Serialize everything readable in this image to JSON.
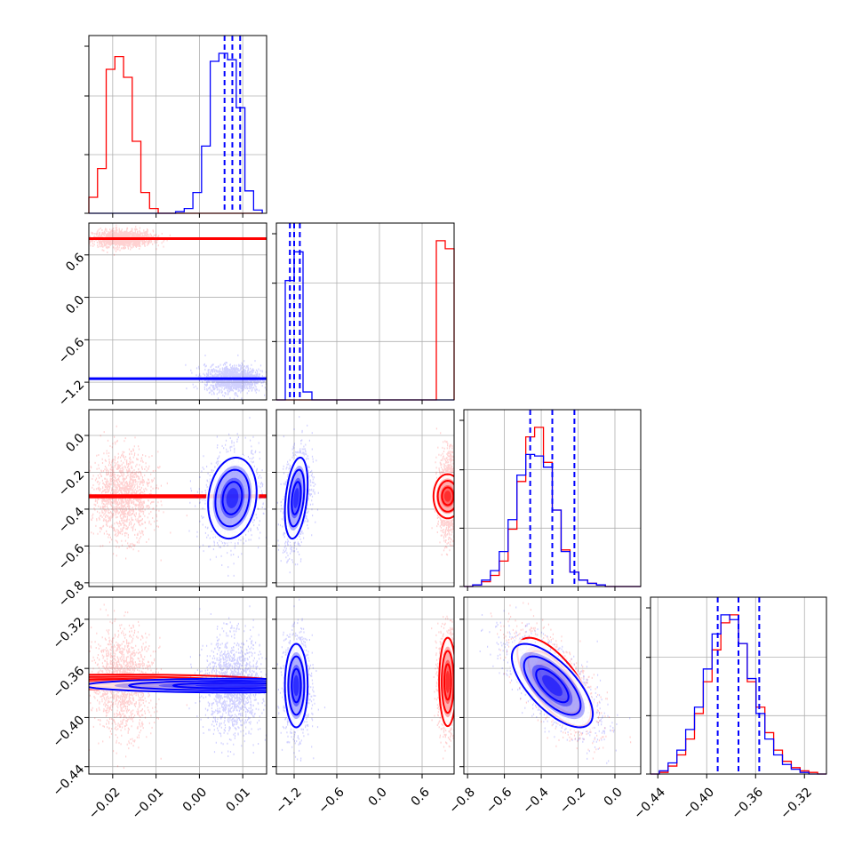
{
  "colors": {
    "red": "#ff0000",
    "blue": "#0000ff",
    "grid": "#b0b0b0",
    "axis": "#000000"
  },
  "chart_data": {
    "type": "corner",
    "grid": true,
    "series": [
      {
        "name": "",
        "color": "#ff0000"
      },
      {
        "name": "",
        "color": "#0000ff"
      }
    ],
    "parameters": [
      {
        "range": [
          -0.0255,
          0.0155
        ],
        "ticks": [
          -0.02,
          -0.01,
          0.0,
          0.01
        ],
        "tick_labels": [
          "−0.02",
          "−0.01",
          "0.00",
          "0.01"
        ],
        "hist_red": {
          "start": -0.0255,
          "step": 0.002,
          "counts": [
            0.1,
            0.28,
            0.9,
            0.98,
            0.85,
            0.45,
            0.13,
            0.03,
            0.0,
            0.0,
            0.0,
            0.0,
            0.0,
            0.0,
            0.0,
            0.0,
            0.0,
            0.0,
            0.0,
            0.0
          ]
        },
        "hist_blue": {
          "start": -0.0255,
          "step": 0.002,
          "counts": [
            0.0,
            0.0,
            0.0,
            0.0,
            0.0,
            0.0,
            0.0,
            0.0,
            0.0,
            0.0,
            0.01,
            0.03,
            0.13,
            0.42,
            0.95,
            1.0,
            0.96,
            0.66,
            0.14,
            0.02
          ]
        },
        "quantiles_blue": [
          0.0058,
          0.0076,
          0.0094
        ]
      },
      {
        "range": [
          -1.45,
          1.05
        ],
        "ticks": [
          -1.2,
          -0.6,
          0.0,
          0.6
        ],
        "tick_labels": [
          "−1.2",
          "−0.6",
          "0.0",
          "0.6"
        ],
        "hist_red": {
          "start": -1.45,
          "step": 0.125,
          "counts": [
            0,
            0,
            0,
            0,
            0,
            0,
            0,
            0,
            0,
            0,
            0,
            0,
            0,
            0,
            0,
            0,
            0,
            0,
            1.0,
            0.95
          ]
        },
        "hist_blue": {
          "start": -1.45,
          "step": 0.125,
          "counts": [
            0,
            0.75,
            0.93,
            0.05,
            0,
            0,
            0,
            0,
            0,
            0,
            0,
            0,
            0,
            0,
            0,
            0,
            0,
            0,
            0,
            0
          ]
        },
        "quantiles_blue": [
          -1.26,
          -1.2,
          -1.12
        ]
      },
      {
        "range": [
          -0.82,
          0.14
        ],
        "ticks": [
          -0.8,
          -0.6,
          -0.4,
          -0.2,
          0.0
        ],
        "tick_labels": [
          "−0.8",
          "−0.6",
          "−0.4",
          "−0.2",
          "0.0"
        ],
        "hist_red": {
          "start": -0.82,
          "step": 0.048,
          "counts": [
            0.0,
            0.01,
            0.03,
            0.07,
            0.16,
            0.36,
            0.66,
            0.94,
            1.0,
            0.78,
            0.48,
            0.23,
            0.09,
            0.04,
            0.02,
            0.01,
            0.0,
            0.0,
            0.0,
            0.0
          ]
        },
        "hist_blue": {
          "start": -0.82,
          "step": 0.048,
          "counts": [
            0.0,
            0.01,
            0.04,
            0.1,
            0.22,
            0.42,
            0.7,
            0.83,
            0.82,
            0.75,
            0.48,
            0.22,
            0.09,
            0.04,
            0.02,
            0.01,
            0.0,
            0.0,
            0.0,
            0.0
          ]
        },
        "quantiles_blue": [
          -0.46,
          -0.34,
          -0.22
        ]
      },
      {
        "range": [
          -0.446,
          -0.302
        ],
        "ticks": [
          -0.44,
          -0.4,
          -0.36,
          -0.32
        ],
        "tick_labels": [
          "−0.44",
          "−0.40",
          "−0.36",
          "−0.32"
        ],
        "hist_red": {
          "start": -0.446,
          "step": 0.0072,
          "counts": [
            0.0,
            0.01,
            0.05,
            0.12,
            0.22,
            0.38,
            0.58,
            0.78,
            0.95,
            1.0,
            0.82,
            0.58,
            0.42,
            0.26,
            0.15,
            0.08,
            0.04,
            0.02,
            0.01,
            0.0
          ]
        },
        "hist_blue": {
          "start": -0.446,
          "step": 0.0072,
          "counts": [
            0.0,
            0.02,
            0.07,
            0.15,
            0.28,
            0.42,
            0.66,
            0.88,
            1.0,
            0.97,
            0.82,
            0.6,
            0.38,
            0.22,
            0.12,
            0.06,
            0.03,
            0.01,
            0.0,
            0.0
          ]
        },
        "quantiles_blue": [
          -0.391,
          -0.374,
          -0.357
        ]
      }
    ],
    "scatter_2d": [
      {
        "row": 1,
        "col": 0,
        "red": {
          "mean": [
            -0.0178,
            0.83
          ],
          "sd": [
            0.003,
            0.05
          ],
          "rho": 0.0
        },
        "blue": {
          "mean": [
            0.0076,
            -1.15
          ],
          "sd": [
            0.0028,
            0.08
          ],
          "rho": 0.0
        }
      },
      {
        "row": 2,
        "col": 0,
        "red": {
          "mean": [
            -0.0178,
            -0.33
          ],
          "sd": [
            0.003,
            0.1
          ],
          "rho": 0.0
        },
        "blue": {
          "mean": [
            0.0076,
            -0.34
          ],
          "sd": [
            0.0028,
            0.11
          ],
          "rho": 0.15
        }
      },
      {
        "row": 2,
        "col": 1,
        "red": {
          "mean": [
            0.96,
            -0.33
          ],
          "sd": [
            0.06,
            0.1
          ],
          "rho": 0.0
        },
        "blue": {
          "mean": [
            -1.17,
            -0.34
          ],
          "sd": [
            0.08,
            0.11
          ],
          "rho": 0.35
        }
      },
      {
        "row": 3,
        "col": 0,
        "red": {
          "mean": [
            -0.0178,
            -0.371
          ],
          "sd": [
            0.003,
            0.018
          ],
          "rho": 0.0
        },
        "blue": {
          "mean": [
            0.0076,
            -0.374
          ],
          "sd": [
            0.0028,
            0.017
          ],
          "rho": 0.0
        }
      },
      {
        "row": 3,
        "col": 1,
        "red": {
          "mean": [
            0.96,
            -0.371
          ],
          "sd": [
            0.06,
            0.018
          ],
          "rho": 0.0
        },
        "blue": {
          "mean": [
            -1.17,
            -0.374
          ],
          "sd": [
            0.08,
            0.017
          ],
          "rho": 0.0
        }
      },
      {
        "row": 3,
        "col": 2,
        "red": {
          "mean": [
            -0.33,
            -0.371
          ],
          "sd": [
            0.1,
            0.018
          ],
          "rho": -0.68
        },
        "blue": {
          "mean": [
            -0.34,
            -0.374
          ],
          "sd": [
            0.11,
            0.017
          ],
          "rho": -0.68
        }
      }
    ]
  }
}
